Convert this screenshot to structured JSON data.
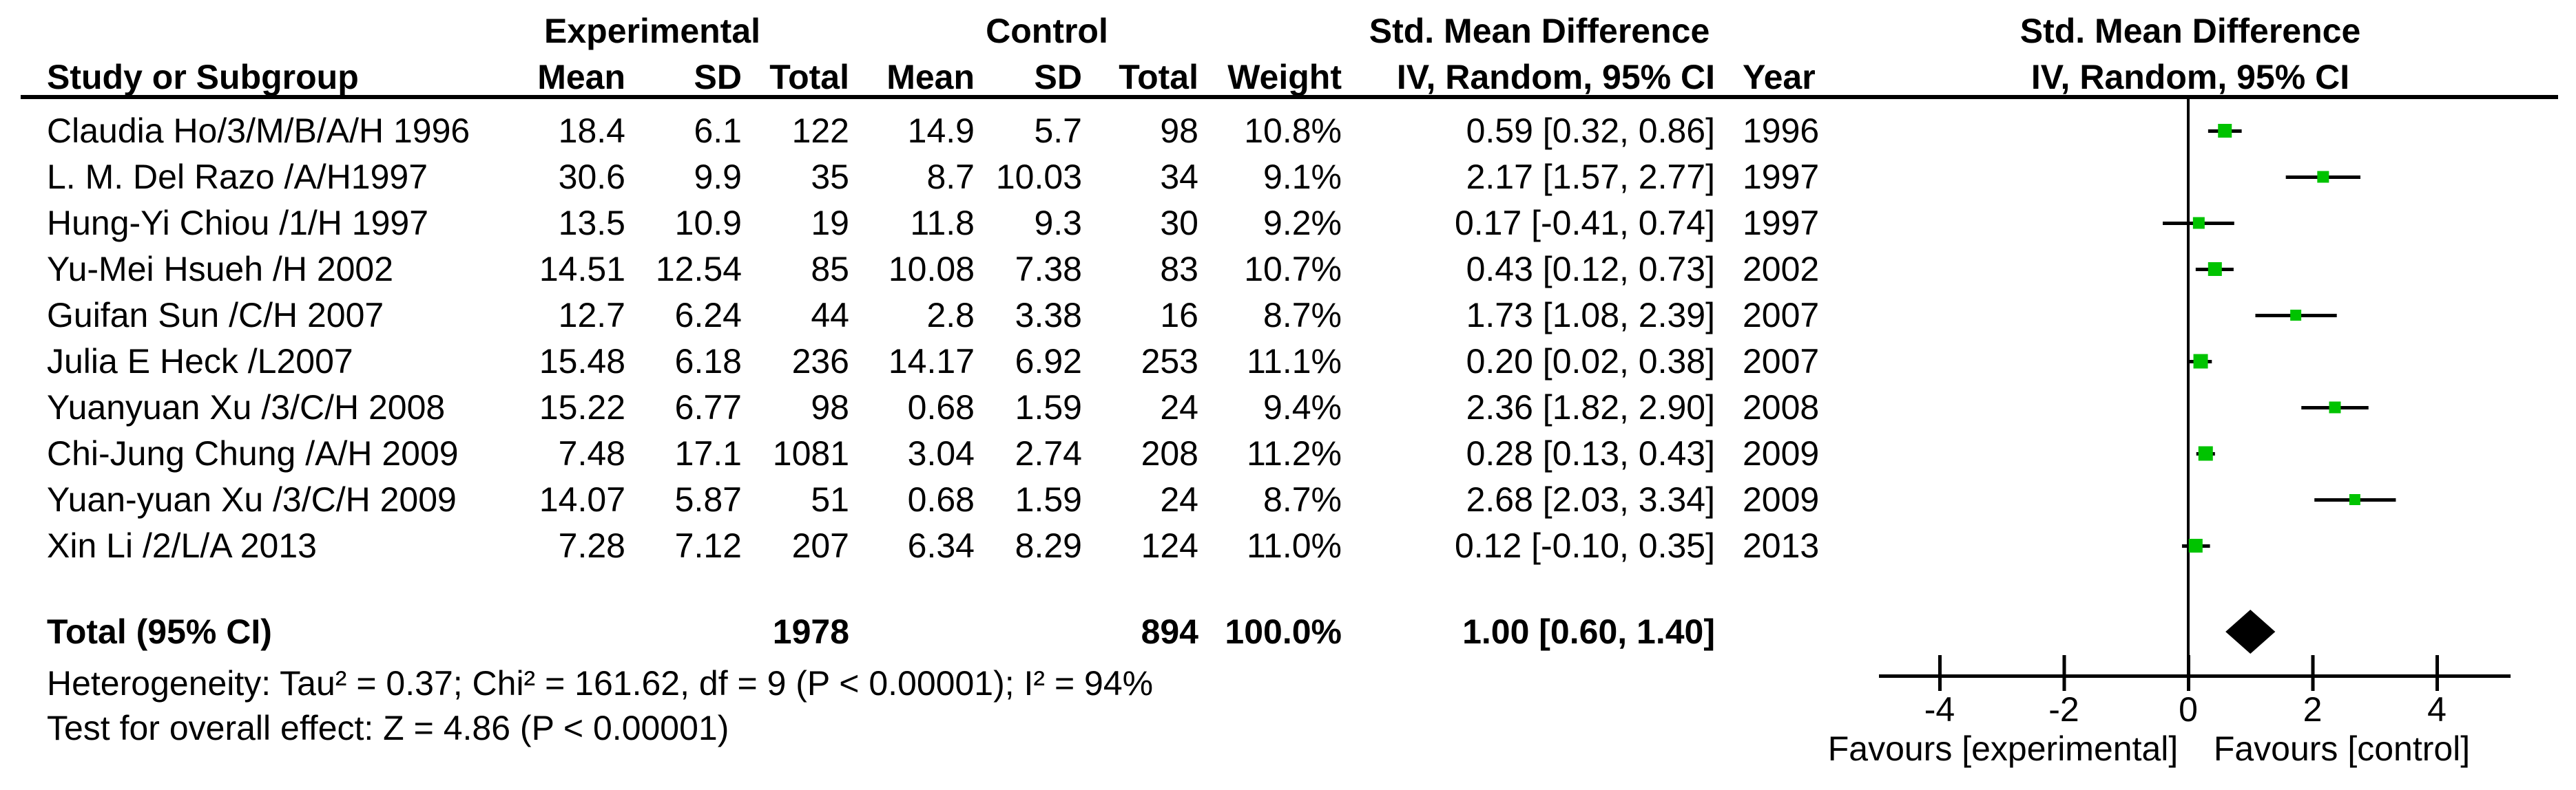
{
  "colors": {
    "marker_green": "#00c300",
    "line_black": "#000000",
    "background": "#ffffff"
  },
  "header": {
    "group_experimental": "Experimental",
    "group_control": "Control",
    "group_smd_table": "Std. Mean Difference",
    "group_smd_plot": "Std. Mean Difference",
    "col_study": "Study or Subgroup",
    "col_mean_exp": "Mean",
    "col_sd_exp": "SD",
    "col_total_exp": "Total",
    "col_mean_ctrl": "Mean",
    "col_sd_ctrl": "SD",
    "col_total_ctrl": "Total",
    "col_weight": "Weight",
    "col_iv_table": "IV, Random, 95% CI",
    "col_year": "Year",
    "col_iv_plot": "IV, Random, 95% CI"
  },
  "studies": [
    {
      "name": "Claudia Ho/3/M/B/A/H 1996",
      "mean_e": "18.4",
      "sd_e": "6.1",
      "total_e": "122",
      "mean_c": "14.9",
      "sd_c": "5.7",
      "total_c": "98",
      "weight": "10.8%",
      "ci": "0.59 [0.32, 0.86]",
      "year": "1996",
      "est": 0.59,
      "lo": 0.32,
      "hi": 0.86,
      "w": 10.8
    },
    {
      "name": "L. M. Del Razo /A/H1997",
      "mean_e": "30.6",
      "sd_e": "9.9",
      "total_e": "35",
      "mean_c": "8.7",
      "sd_c": "10.03",
      "total_c": "34",
      "weight": "9.1%",
      "ci": "2.17 [1.57, 2.77]",
      "year": "1997",
      "est": 2.17,
      "lo": 1.57,
      "hi": 2.77,
      "w": 9.1
    },
    {
      "name": "Hung-Yi Chiou /1/H 1997",
      "mean_e": "13.5",
      "sd_e": "10.9",
      "total_e": "19",
      "mean_c": "11.8",
      "sd_c": "9.3",
      "total_c": "30",
      "weight": "9.2%",
      "ci": "0.17 [-0.41, 0.74]",
      "year": "1997",
      "est": 0.17,
      "lo": -0.41,
      "hi": 0.74,
      "w": 9.2
    },
    {
      "name": "Yu-Mei Hsueh /H 2002",
      "mean_e": "14.51",
      "sd_e": "12.54",
      "total_e": "85",
      "mean_c": "10.08",
      "sd_c": "7.38",
      "total_c": "83",
      "weight": "10.7%",
      "ci": "0.43 [0.12, 0.73]",
      "year": "2002",
      "est": 0.43,
      "lo": 0.12,
      "hi": 0.73,
      "w": 10.7
    },
    {
      "name": "Guifan Sun /C/H 2007",
      "mean_e": "12.7",
      "sd_e": "6.24",
      "total_e": "44",
      "mean_c": "2.8",
      "sd_c": "3.38",
      "total_c": "16",
      "weight": "8.7%",
      "ci": "1.73 [1.08, 2.39]",
      "year": "2007",
      "est": 1.73,
      "lo": 1.08,
      "hi": 2.39,
      "w": 8.7
    },
    {
      "name": "Julia E Heck /L2007",
      "mean_e": "15.48",
      "sd_e": "6.18",
      "total_e": "236",
      "mean_c": "14.17",
      "sd_c": "6.92",
      "total_c": "253",
      "weight": "11.1%",
      "ci": "0.20 [0.02, 0.38]",
      "year": "2007",
      "est": 0.2,
      "lo": 0.02,
      "hi": 0.38,
      "w": 11.1
    },
    {
      "name": "Yuanyuan Xu /3/C/H 2008",
      "mean_e": "15.22",
      "sd_e": "6.77",
      "total_e": "98",
      "mean_c": "0.68",
      "sd_c": "1.59",
      "total_c": "24",
      "weight": "9.4%",
      "ci": "2.36 [1.82, 2.90]",
      "year": "2008",
      "est": 2.36,
      "lo": 1.82,
      "hi": 2.9,
      "w": 9.4
    },
    {
      "name": "Chi-Jung Chung /A/H 2009",
      "mean_e": "7.48",
      "sd_e": "17.1",
      "total_e": "1081",
      "mean_c": "3.04",
      "sd_c": "2.74",
      "total_c": "208",
      "weight": "11.2%",
      "ci": "0.28 [0.13, 0.43]",
      "year": "2009",
      "est": 0.28,
      "lo": 0.13,
      "hi": 0.43,
      "w": 11.2
    },
    {
      "name": "Yuan-yuan Xu /3/C/H 2009",
      "mean_e": "14.07",
      "sd_e": "5.87",
      "total_e": "51",
      "mean_c": "0.68",
      "sd_c": "1.59",
      "total_c": "24",
      "weight": "8.7%",
      "ci": "2.68 [2.03, 3.34]",
      "year": "2009",
      "est": 2.68,
      "lo": 2.03,
      "hi": 3.34,
      "w": 8.7
    },
    {
      "name": "Xin Li /2/L/A 2013",
      "mean_e": "7.28",
      "sd_e": "7.12",
      "total_e": "207",
      "mean_c": "6.34",
      "sd_c": "8.29",
      "total_c": "124",
      "weight": "11.0%",
      "ci": "0.12 [-0.10, 0.35]",
      "year": "2013",
      "est": 0.12,
      "lo": -0.1,
      "hi": 0.35,
      "w": 11.0
    }
  ],
  "total_row": {
    "label": "Total (95% CI)",
    "total_e": "1978",
    "total_c": "894",
    "weight": "100.0%",
    "ci": "1.00 [0.60, 1.40]",
    "est": 1.0,
    "lo": 0.6,
    "hi": 1.4
  },
  "footer": {
    "heterogeneity": "Heterogeneity: Tau² = 0.37; Chi² = 161.62, df = 9 (P < 0.00001); I² = 94%",
    "overall_effect": "Test for overall effect: Z = 4.86 (P < 0.00001)"
  },
  "axis": {
    "ticks": [
      "-4",
      "-2",
      "0",
      "2",
      "4"
    ],
    "tick_values": [
      -4,
      -2,
      0,
      2,
      4
    ],
    "favours_left": "Favours [experimental]",
    "favours_right": "Favours [control]"
  },
  "chart_data": {
    "type": "scatter",
    "subtype": "forest-plot",
    "title": "Std. Mean Difference  IV, Random, 95% CI",
    "xlabel": "Std. Mean Difference",
    "xlim": [
      -5.0,
      5.2
    ],
    "x_ticks": [
      -4,
      -2,
      0,
      2,
      4
    ],
    "legend_position": "none",
    "grid": false,
    "series": [
      {
        "name": "Claudia Ho/3/M/B/A/H 1996",
        "year": 1996,
        "est": 0.59,
        "lo": 0.32,
        "hi": 0.86,
        "weight_pct": 10.8
      },
      {
        "name": "L. M. Del Razo /A/H1997",
        "year": 1997,
        "est": 2.17,
        "lo": 1.57,
        "hi": 2.77,
        "weight_pct": 9.1
      },
      {
        "name": "Hung-Yi Chiou /1/H 1997",
        "year": 1997,
        "est": 0.17,
        "lo": -0.41,
        "hi": 0.74,
        "weight_pct": 9.2
      },
      {
        "name": "Yu-Mei Hsueh /H 2002",
        "year": 2002,
        "est": 0.43,
        "lo": 0.12,
        "hi": 0.73,
        "weight_pct": 10.7
      },
      {
        "name": "Guifan Sun /C/H 2007",
        "year": 2007,
        "est": 1.73,
        "lo": 1.08,
        "hi": 2.39,
        "weight_pct": 8.7
      },
      {
        "name": "Julia E Heck /L2007",
        "year": 2007,
        "est": 0.2,
        "lo": 0.02,
        "hi": 0.38,
        "weight_pct": 11.1
      },
      {
        "name": "Yuanyuan Xu /3/C/H 2008",
        "year": 2008,
        "est": 2.36,
        "lo": 1.82,
        "hi": 2.9,
        "weight_pct": 9.4
      },
      {
        "name": "Chi-Jung Chung /A/H 2009",
        "year": 2009,
        "est": 0.28,
        "lo": 0.13,
        "hi": 0.43,
        "weight_pct": 11.2
      },
      {
        "name": "Yuan-yuan Xu /3/C/H 2009",
        "year": 2009,
        "est": 2.68,
        "lo": 2.03,
        "hi": 3.34,
        "weight_pct": 8.7
      },
      {
        "name": "Xin Li /2/L/A 2013",
        "year": 2013,
        "est": 0.12,
        "lo": -0.1,
        "hi": 0.35,
        "weight_pct": 11.0
      }
    ],
    "total_diamond": {
      "label": "Total (95% CI)",
      "est": 1.0,
      "lo": 0.6,
      "hi": 1.4
    }
  }
}
